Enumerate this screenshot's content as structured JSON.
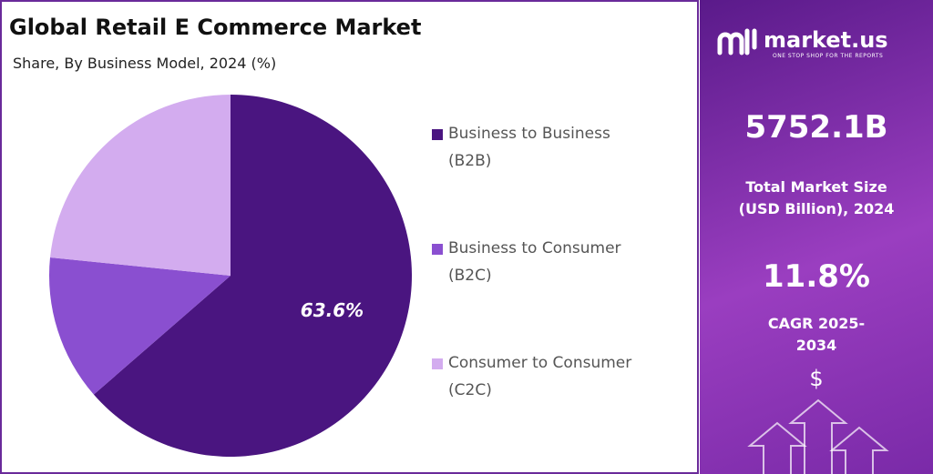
{
  "chart_data": {
    "type": "pie",
    "title": "Global Retail E Commerce Market",
    "subtitle": "Share, By Business Model, 2024 (%)",
    "categories": [
      "Business to Business (B2B)",
      "Business to Consumer (B2C)",
      "Consumer to Consumer (C2C)"
    ],
    "values": [
      63.6,
      13,
      23.4
    ],
    "value_labels": [
      "63.6%",
      null,
      null
    ],
    "colors": [
      "#4a1580",
      "#8a4fd0",
      "#d3acef"
    ],
    "legend": "right"
  },
  "side_panel": {
    "brand": "market.us",
    "tagline": "ONE STOP SHOP FOR THE REPORTS",
    "market_size": "5752.1B",
    "market_size_label": "Total Market Size (USD Billion), 2024",
    "cagr": "11.8%",
    "cagr_label": "CAGR 2025-2034",
    "icon": "$"
  }
}
